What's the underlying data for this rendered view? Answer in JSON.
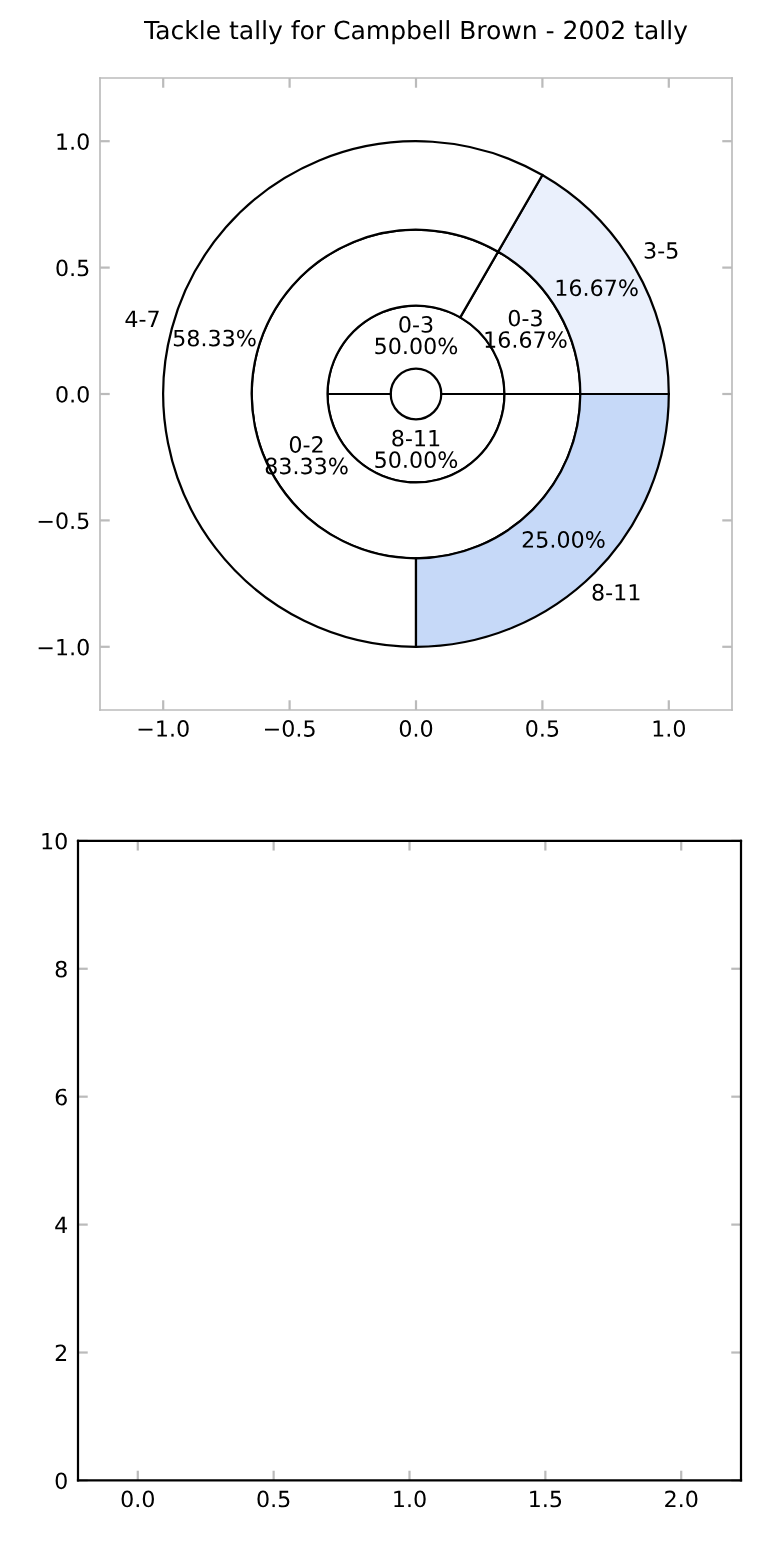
{
  "chart_data": [
    {
      "type": "scatter",
      "title": "Tackle tally for Campbell Brown - 2002 tally",
      "xlim": [
        -1.25,
        1.25
      ],
      "ylim": [
        -1.25,
        1.25
      ],
      "xticks": [
        {
          "value": -1.0,
          "label": "−1.0"
        },
        {
          "value": -0.5,
          "label": "−0.5"
        },
        {
          "value": 0.0,
          "label": "0.0"
        },
        {
          "value": 0.5,
          "label": "0.5"
        },
        {
          "value": 1.0,
          "label": "1.0"
        }
      ],
      "yticks": [
        {
          "value": -1.0,
          "label": "−1.0"
        },
        {
          "value": -0.5,
          "label": "−0.5"
        },
        {
          "value": 0.0,
          "label": "0.0"
        },
        {
          "value": 0.5,
          "label": "0.5"
        },
        {
          "value": 1.0,
          "label": "1.0"
        }
      ]
    },
    {
      "type": "donut",
      "annotations": [
        "0-3",
        "8-11",
        "0-3",
        "0-2",
        "3-5",
        "4-7",
        "8-11"
      ],
      "series": [
        {
          "values": [
            50.0,
            50.0
          ],
          "colors": [
            "#ffffff",
            "#ffffff"
          ],
          "value_labels": [
            "50.00%",
            "50.00%"
          ]
        },
        {
          "values": [
            16.67,
            83.33
          ],
          "colors": [
            "#ffffff",
            "#ffffff"
          ],
          "value_labels": [
            "16.67%",
            "83.33%"
          ]
        },
        {
          "values": [
            16.67,
            58.33,
            25.0
          ],
          "colors": [
            "#eaf0fc",
            "#ffffff",
            "#c6d9f8"
          ],
          "value_labels": [
            "16.67%",
            "58.33%",
            "25.00%"
          ]
        }
      ]
    },
    {
      "type": "scatter",
      "xlim": [
        -0.22,
        2.22
      ],
      "ylim": [
        0,
        10
      ],
      "xticks": [
        {
          "value": 0.0,
          "label": "0.0"
        },
        {
          "value": 0.5,
          "label": "0.5"
        },
        {
          "value": 1.0,
          "label": "1.0"
        },
        {
          "value": 1.5,
          "label": "1.5"
        },
        {
          "value": 2.0,
          "label": "2.0"
        }
      ],
      "yticks": [
        0,
        2,
        4,
        6,
        8,
        10
      ]
    }
  ]
}
